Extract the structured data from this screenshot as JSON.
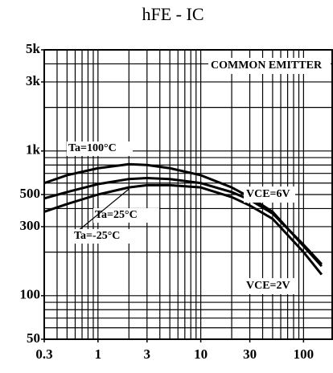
{
  "chart_data": {
    "type": "line",
    "title": "hFE - IC",
    "x": [
      0.3,
      0.5,
      1,
      2,
      3,
      5,
      10,
      20,
      30,
      50,
      100,
      150
    ],
    "series": [
      {
        "name": "Ta=100°C",
        "color": "#000000",
        "values": [
          600,
          680,
          760,
          810,
          800,
          760,
          680,
          560,
          480,
          380,
          220,
          160
        ]
      },
      {
        "name": "Ta=25°C",
        "color": "#000000",
        "values": [
          470,
          520,
          590,
          640,
          650,
          640,
          600,
          520,
          460,
          370,
          225,
          165
        ]
      },
      {
        "name": "Ta=-25°C",
        "color": "#000000",
        "values": [
          380,
          430,
          500,
          560,
          580,
          580,
          560,
          480,
          420,
          340,
          200,
          140
        ]
      }
    ],
    "annotations": [
      "COMMON EMITTER",
      "VCE=6V",
      "VCE=2V"
    ],
    "xlim": [
      0.3,
      190
    ],
    "ylim": [
      50,
      5000
    ],
    "xlog": true,
    "ylog": true,
    "xticks": [
      0.3,
      1,
      3,
      10,
      30,
      100
    ],
    "yticks": [
      50,
      100,
      300,
      500,
      {
        "value": 1000,
        "label": "1k"
      },
      {
        "value": 3000,
        "label": "3k"
      },
      {
        "value": 5000,
        "label": "5k"
      }
    ],
    "xgrid": [
      0.3,
      0.4,
      0.5,
      0.6,
      0.7,
      0.8,
      0.9,
      1,
      2,
      3,
      4,
      5,
      6,
      7,
      8,
      9,
      10,
      20,
      30,
      40,
      50,
      60,
      70,
      80,
      90,
      100
    ],
    "ygrid": [
      60,
      70,
      80,
      90,
      100,
      200,
      300,
      400,
      500,
      600,
      700,
      800,
      900,
      1000,
      2000,
      3000,
      4000
    ],
    "grid": true
  }
}
